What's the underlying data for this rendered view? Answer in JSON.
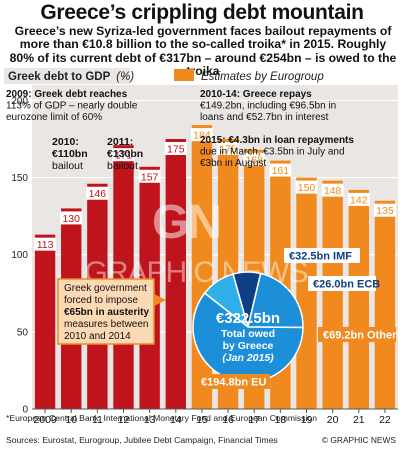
{
  "title": "Greece’s crippling debt mountain",
  "subtitle": "Greece’s new Syriza-led government faces bailout repayments of more than €10.8 billion to the so-called troika* in 2015. Roughly 80% of its current debt of €317bn – around €254bn – is owed to the troika",
  "colors": {
    "actual": "#c0141c",
    "estimate": "#f08a1e",
    "plot_bg": "#e9e6e4",
    "callout": "#fbd9b4",
    "pie_blue": "#1d8fd8",
    "pie_light": "#2faee8",
    "pie_dark": "#0e3e86"
  },
  "chart_data": [
    {
      "type": "bar",
      "ylabel": "Greek debt to GDP",
      "ylabel_unit": "(%)",
      "legend": "Estimates by Eurogroup",
      "categories": [
        "2009",
        "10",
        "11",
        "12",
        "13",
        "14",
        "15",
        "16",
        "17",
        "18",
        "19",
        "20",
        "21",
        "22"
      ],
      "values": [
        113,
        130,
        146,
        171,
        157,
        175,
        184,
        175,
        168,
        161,
        150,
        148,
        142,
        135
      ],
      "estimated": [
        false,
        false,
        false,
        false,
        false,
        false,
        true,
        true,
        true,
        true,
        true,
        true,
        true,
        true
      ],
      "ylim": [
        0,
        210
      ],
      "yticks": [
        0,
        50,
        100,
        150,
        200
      ]
    },
    {
      "type": "pie",
      "title": "€322.5bn",
      "subtitle": "Total owed by Greece (Jan 2015)",
      "slices": [
        {
          "label": "EU",
          "text": "€194.8bn EU",
          "value": 194.8
        },
        {
          "label": "IMF",
          "text": "€32.5bn IMF",
          "value": 32.5
        },
        {
          "label": "ECB",
          "text": "€26.0bn ECB",
          "value": 26.0
        },
        {
          "label": "Other",
          "text": "€69.2bn Other",
          "value": 69.2
        }
      ]
    }
  ],
  "annotations": {
    "a2009": [
      "2009: Greek debt reaches",
      "113% of GDP – nearly double",
      "eurozone limit of 60%"
    ],
    "a2010": [
      "2010:",
      "€110bn",
      "bailout"
    ],
    "a2011": [
      "2011:",
      "€130bn",
      "bailout"
    ],
    "a1014": [
      "2010-14: Greece repays",
      "€149.2bn, including €96.5bn in",
      "loans and €52.7bn in interest"
    ],
    "a2015": [
      "2015: €4.3bn in loan repayments",
      "due in March, €3.5bn in July and",
      "€3bn in August"
    ],
    "austerity": [
      "Greek government",
      "forced to impose",
      "€65bn in austerity",
      "measures between",
      "2010 and 2014"
    ]
  },
  "footnotes": {
    "note": "*European Central Bank, International Monetary Fund and European Commission",
    "sources": "Sources: Eurostat, Eurogroup, Jubilee Debt Campaign, Financial Times",
    "credit": "© GRAPHIC NEWS"
  },
  "watermark": "GRAPHIC NEWS"
}
